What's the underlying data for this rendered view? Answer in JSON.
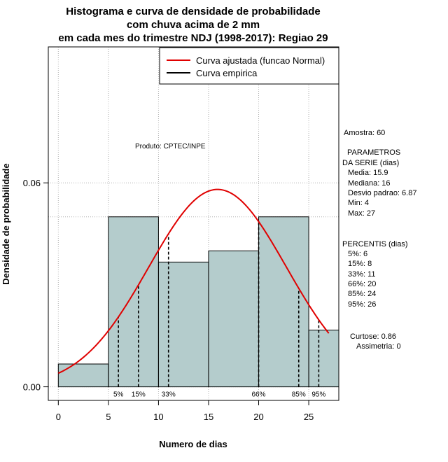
{
  "chart_data": {
    "type": "bar",
    "title_lines": [
      "Histograma e curva de densidade de probabilidade",
      "com chuva acima de 2 mm",
      "em cada mes do trimestre NDJ (1998-2017): Regiao 29"
    ],
    "xlabel": "Numero de dias",
    "ylabel": "Densidade de probabilidade",
    "xlim": [
      -1,
      28
    ],
    "ylim": [
      -0.004,
      0.1
    ],
    "x_ticks": [
      0,
      5,
      10,
      15,
      20,
      25
    ],
    "x_tick_labels": [
      "0",
      "5",
      "10",
      "15",
      "20",
      "25"
    ],
    "y_ticks": [
      0.0,
      0.06
    ],
    "y_tick_labels": [
      "0.00",
      "0.06"
    ],
    "grid": true,
    "grid_y_extra": [
      0.05
    ],
    "bins": [
      {
        "x0": 0,
        "x1": 5,
        "density": 0.0067
      },
      {
        "x0": 5,
        "x1": 10,
        "density": 0.05
      },
      {
        "x0": 10,
        "x1": 15,
        "density": 0.0367
      },
      {
        "x0": 15,
        "x1": 20,
        "density": 0.04
      },
      {
        "x0": 20,
        "x1": 25,
        "density": 0.05
      },
      {
        "x0": 25,
        "x1": 28,
        "density": 0.0167
      }
    ],
    "normal_curve": {
      "mean": 15.9,
      "sd": 6.87,
      "x_from": 0,
      "x_to": 27
    },
    "percentiles": [
      {
        "label": "5%",
        "x": 6
      },
      {
        "label": "15%",
        "x": 8
      },
      {
        "label": "33%",
        "x": 11
      },
      {
        "label": "66%",
        "x": 20
      },
      {
        "label": "85%",
        "x": 24
      },
      {
        "label": "95%",
        "x": 26
      }
    ],
    "legend": {
      "position": "top-right",
      "entries": [
        {
          "label": "Curva ajustada (funcao Normal)",
          "color": "#e00000"
        },
        {
          "label": "Curva empirica",
          "color": "#000000"
        }
      ]
    },
    "annotation": "Produto: CPTEC/INPE",
    "bar_color": "#b4cccc",
    "curve_color": "#e00000"
  },
  "side_panel": {
    "amostra": "Amostra: 60",
    "params_header_1": "PARAMETROS",
    "params_header_2": "DA SERIE (dias)",
    "params": [
      "Media: 15.9",
      "Mediana: 16",
      "Desvio padrao: 6.87",
      "Min: 4",
      "Max: 27"
    ],
    "percentis_header": "PERCENTIS (dias)",
    "percentis": [
      "5%: 6",
      "15%: 8",
      "33%: 11",
      "66%: 20",
      "85%: 24",
      "95%: 26"
    ],
    "curtose": "Curtose: 0.86",
    "assimetria": "Assimetria: 0"
  }
}
